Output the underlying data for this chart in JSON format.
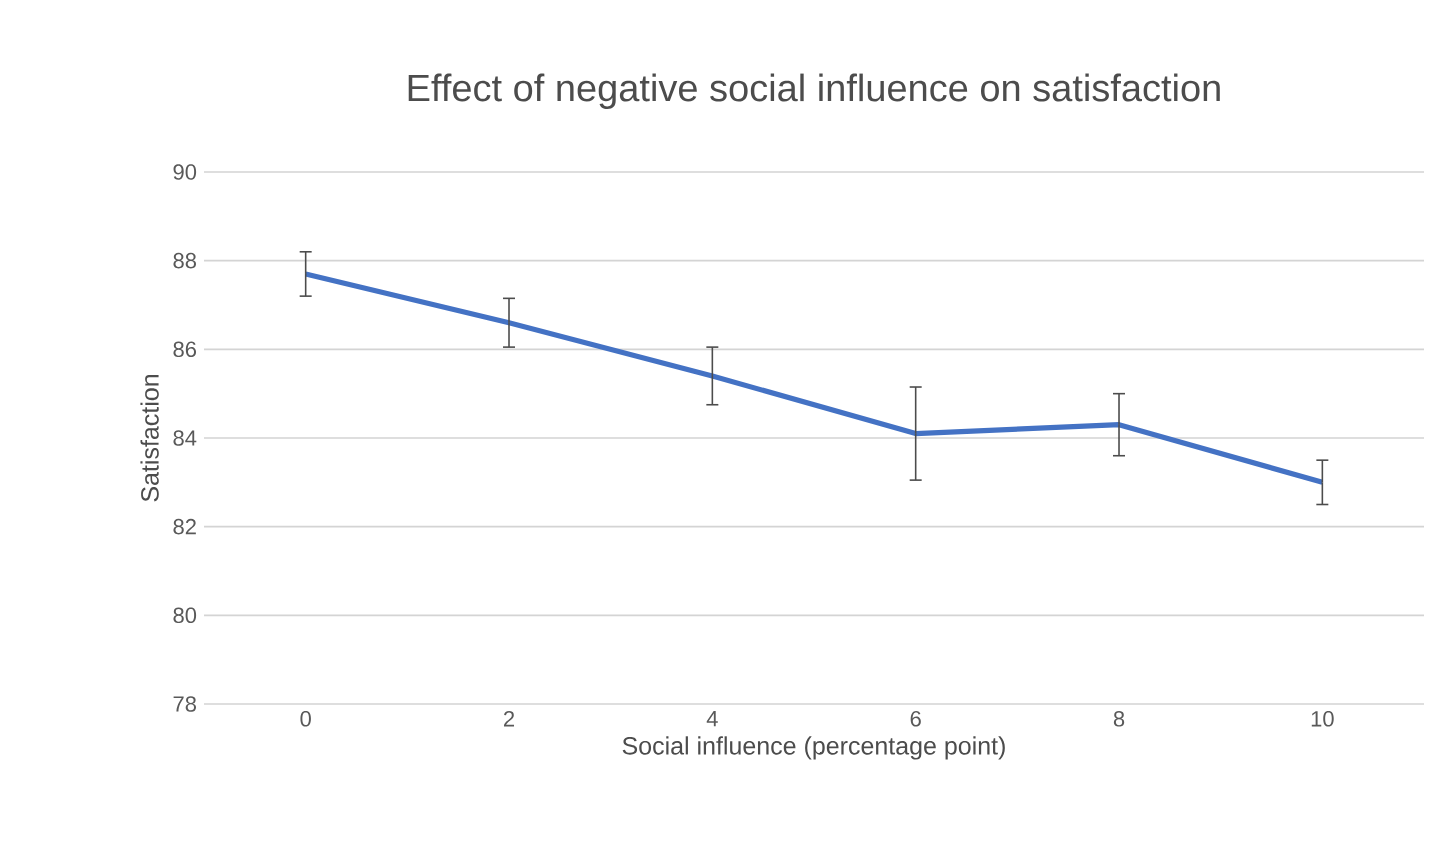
{
  "chart_data": {
    "type": "line",
    "title": "Effect of negative social influence on satisfaction",
    "xlabel": "Social influence (percentage point)",
    "ylabel": "Satisfaction",
    "categories": [
      "0",
      "2",
      "4",
      "6",
      "8",
      "10"
    ],
    "series": [
      {
        "color": "#4472c4",
        "values": [
          87.7,
          86.6,
          85.4,
          84.1,
          84.3,
          83.0
        ],
        "errors": [
          0.5,
          0.55,
          0.65,
          1.05,
          0.7,
          0.5
        ]
      }
    ],
    "ylim": [
      78,
      90
    ],
    "yticks": [
      78,
      80,
      82,
      84,
      86,
      88,
      90
    ],
    "grid": "y",
    "marker": "none",
    "line_style": "solid"
  }
}
